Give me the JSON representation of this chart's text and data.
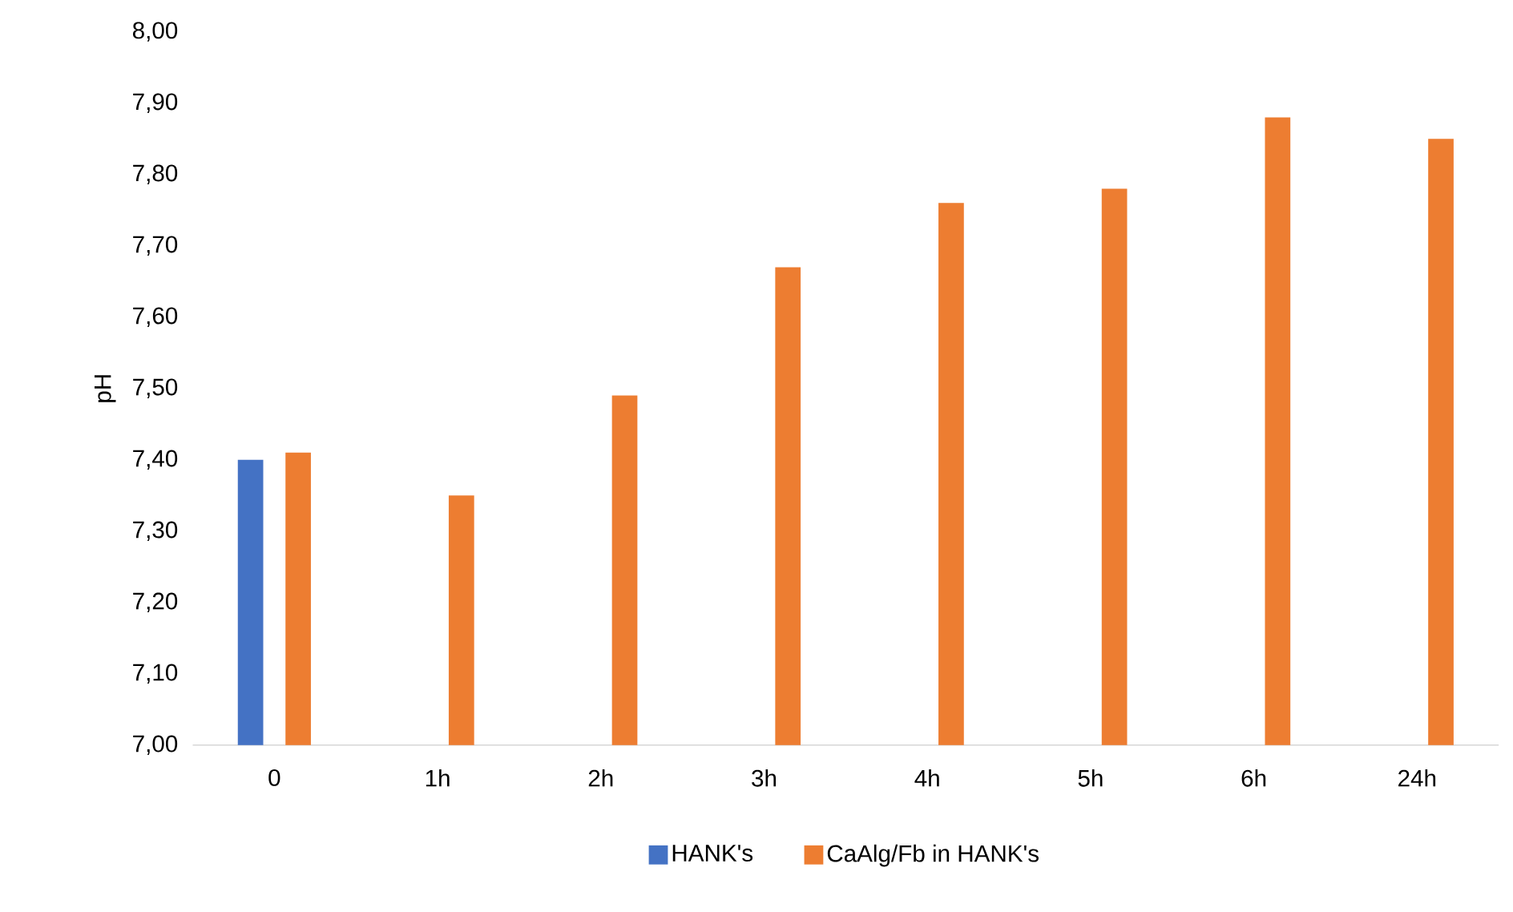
{
  "chart_data": {
    "type": "bar",
    "ylabel": "pH",
    "categories": [
      "0",
      "1h",
      "2h",
      "3h",
      "4h",
      "5h",
      "6h",
      "24h"
    ],
    "series": [
      {
        "name": "HANK's",
        "color": "#4472c4",
        "values": [
          7.4,
          null,
          null,
          null,
          null,
          null,
          null,
          null
        ]
      },
      {
        "name": "CaAlg/Fb in HANK's",
        "color": "#ed7d31",
        "values": [
          7.41,
          7.35,
          7.49,
          7.67,
          7.76,
          7.78,
          7.88,
          7.85
        ]
      }
    ],
    "ylim": [
      7.0,
      8.0
    ],
    "yticks": [
      {
        "value": 7.0,
        "label": "7,00"
      },
      {
        "value": 7.1,
        "label": "7,10"
      },
      {
        "value": 7.2,
        "label": "7,20"
      },
      {
        "value": 7.3,
        "label": "7,30"
      },
      {
        "value": 7.4,
        "label": "7,40"
      },
      {
        "value": 7.5,
        "label": "7,50"
      },
      {
        "value": 7.6,
        "label": "7,60"
      },
      {
        "value": 7.7,
        "label": "7,70"
      },
      {
        "value": 7.8,
        "label": "7,80"
      },
      {
        "value": 7.9,
        "label": "7,90"
      },
      {
        "value": 8.0,
        "label": "8,00"
      }
    ],
    "grid": false,
    "legend": "bottom"
  }
}
